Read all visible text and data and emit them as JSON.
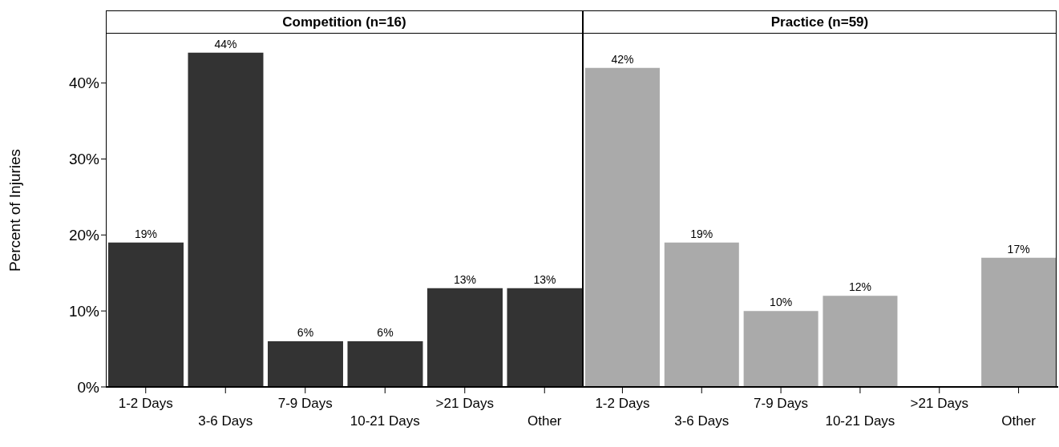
{
  "chart_data": [
    {
      "type": "bar",
      "title": "Competition (n=16)",
      "ylabel": "Percent of Injuries",
      "categories": [
        "1-2 Days",
        "3-6 Days",
        "7-9 Days",
        "10-21 Days",
        ">21 Days",
        "Other"
      ],
      "values": [
        19,
        44,
        6,
        6,
        13,
        13
      ],
      "color": "#333333",
      "value_labels": [
        "19%",
        "44%",
        "6%",
        "6%",
        "13%",
        "13%"
      ],
      "ylim": [
        0,
        46.5
      ],
      "yticks": [
        {
          "value": 0,
          "label": "0%"
        },
        {
          "value": 10,
          "label": "10%"
        },
        {
          "value": 20,
          "label": "20%"
        },
        {
          "value": 30,
          "label": "30%"
        },
        {
          "value": 40,
          "label": "40%"
        }
      ]
    },
    {
      "type": "bar",
      "title": "Practice (n=59)",
      "categories": [
        "1-2 Days",
        "3-6 Days",
        "7-9 Days",
        "10-21 Days",
        ">21 Days",
        "Other"
      ],
      "values": [
        42,
        19,
        10,
        12,
        0,
        17
      ],
      "color": "#aaaaaa",
      "value_labels": [
        "42%",
        "19%",
        "10%",
        "12%",
        null,
        "17%"
      ],
      "ylim": [
        0,
        46.5
      ],
      "tick_labels": "x"
    }
  ]
}
